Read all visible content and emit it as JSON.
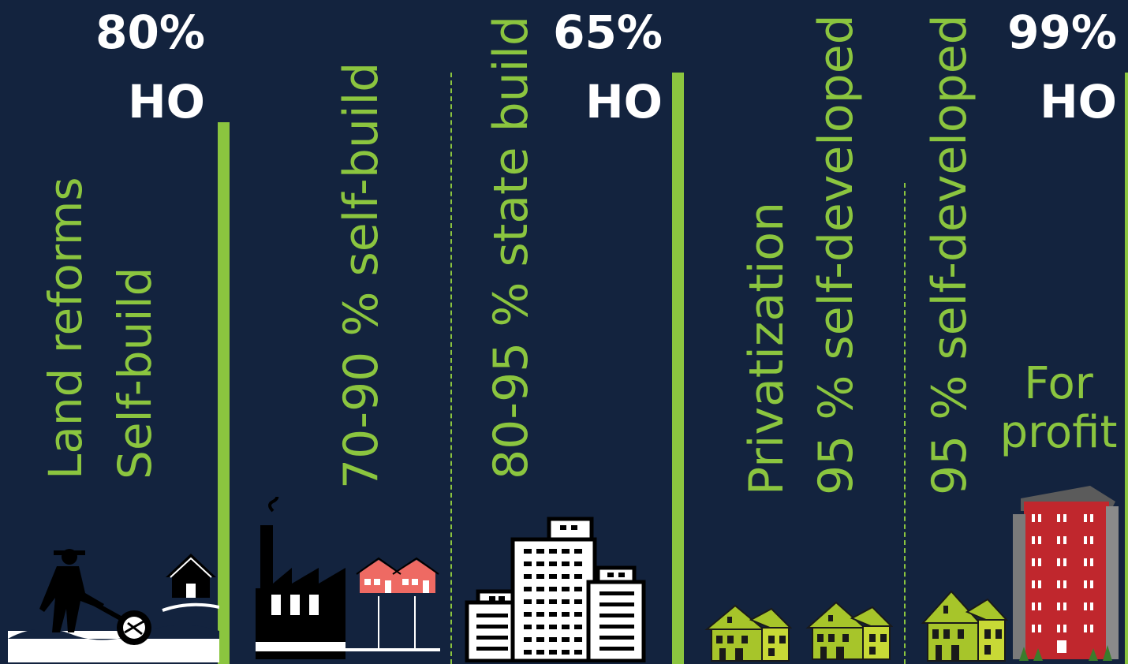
{
  "periods": [
    {
      "homeownership_pct": "80%",
      "homeownership_label": "HO",
      "labels": [
        "Land reforms",
        "Self-build"
      ],
      "icons": [
        "farmer-plowing-icon",
        "house-icon"
      ]
    },
    {
      "labels": [
        "70-90 % self-build"
      ],
      "icons": [
        "factory-icon",
        "row-houses-icon"
      ]
    },
    {
      "homeownership_pct": "65%",
      "homeownership_label": "HO",
      "labels": [
        "80-95 % state build"
      ],
      "icons": [
        "apartment-blocks-icon"
      ]
    },
    {
      "labels": [
        "Privatization",
        "95 % self-developed"
      ],
      "icons": [
        "detached-house-icon",
        "detached-house-icon"
      ]
    },
    {
      "homeownership_pct": "99%",
      "homeownership_label": "HO",
      "labels": [
        "95 % self-developed",
        "For profit"
      ],
      "icons": [
        "detached-house-icon",
        "highrise-icon"
      ]
    }
  ],
  "colors": {
    "background": "#13233e",
    "accent": "#8bc53f",
    "text": "#ffffff",
    "house_green": "#a7c52a",
    "house_red": "#ee6a63",
    "tower_red": "#c0272d"
  }
}
